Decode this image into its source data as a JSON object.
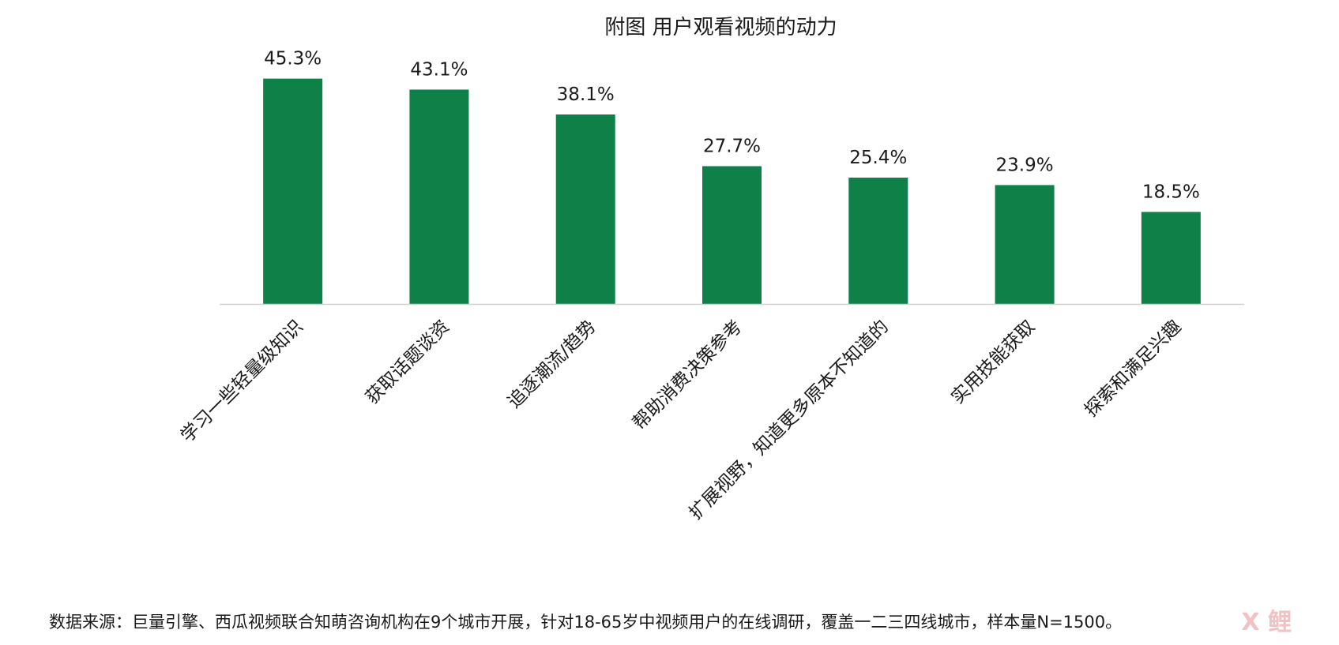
{
  "chart_data": {
    "type": "bar",
    "title": "附图 用户观看视频的动力",
    "categories": [
      "学习一些轻量级知识",
      "获取话题谈资",
      "追逐潮流/趋势",
      "帮助消费决策参考",
      "扩展视野，知道更多原本不知道的",
      "实用技能获取",
      "探索和满足兴趣"
    ],
    "values": [
      45.3,
      43.1,
      38.1,
      27.7,
      25.4,
      23.9,
      18.5
    ],
    "value_labels": [
      "45.3%",
      "43.1%",
      "38.1%",
      "27.7%",
      "25.4%",
      "23.9%",
      "18.5%"
    ],
    "ylim": [
      0,
      50
    ],
    "grid": false,
    "legend": "none",
    "bar_color": "#0f8048",
    "axis_color": "#d0d0d0"
  },
  "footer": {
    "source": "数据来源：巨量引擎、西瓜视频联合知萌咨询机构在9个城市开展，针对18-65岁中视频用户的在线调研，覆盖一二三四线城市，样本量N=1500。"
  }
}
